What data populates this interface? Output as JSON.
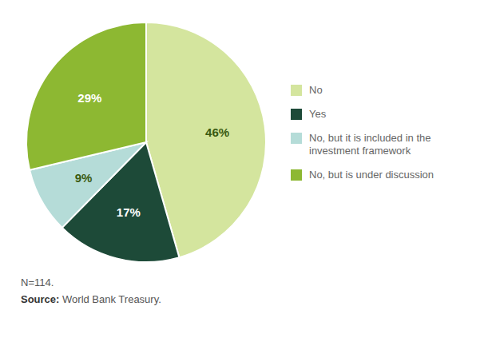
{
  "chart_data": {
    "type": "pie",
    "categories": [
      "No",
      "Yes",
      "No, but it is included in the\ninvestment framework",
      "No, but is under discussion"
    ],
    "values": [
      46,
      17,
      9,
      29
    ],
    "value_labels": [
      "46%",
      "17%",
      "9%",
      "29%"
    ],
    "colors": [
      "#d4e59e",
      "#1d4a38",
      "#b5dcd8",
      "#8db832"
    ],
    "data_labels": true,
    "note": "N=114.",
    "source_label": "Source:",
    "source_text": "World Bank Treasury."
  }
}
